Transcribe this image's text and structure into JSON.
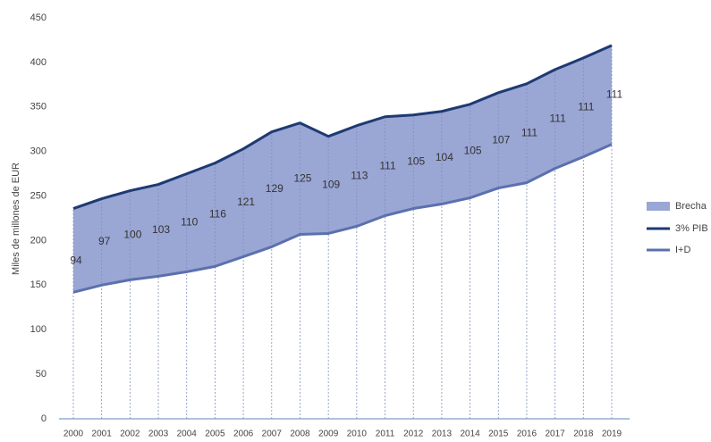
{
  "chart_data": {
    "type": "area",
    "y_label": "Miles de millones de EUR",
    "categories": [
      "2000",
      "2001",
      "2002",
      "2003",
      "2004",
      "2005",
      "2006",
      "2007",
      "2008",
      "2009",
      "2010",
      "2011",
      "2012",
      "2013",
      "2014",
      "2015",
      "2016",
      "2017",
      "2018",
      "2019"
    ],
    "series": [
      {
        "name": "Brecha",
        "color": "#9aa6d4",
        "values": [
          94,
          97,
          100,
          103,
          110,
          116,
          121,
          129,
          125,
          109,
          113,
          111,
          105,
          104,
          105,
          107,
          111,
          111,
          111,
          111
        ]
      },
      {
        "name": "3% PIB",
        "color": "#1d3a73",
        "values": [
          236,
          247,
          256,
          263,
          275,
          287,
          303,
          322,
          332,
          317,
          329,
          339,
          341,
          345,
          353,
          366,
          376,
          392,
          405,
          419
        ]
      },
      {
        "name": "I+D",
        "color": "#5b70ae",
        "values": [
          142,
          150,
          156,
          160,
          165,
          171,
          182,
          193,
          207,
          208,
          216,
          228,
          236,
          241,
          248,
          259,
          265,
          281,
          294,
          308
        ]
      }
    ],
    "ylim": [
      0,
      450
    ],
    "yticks": [
      0,
      50,
      100,
      150,
      200,
      250,
      300,
      350,
      400,
      450
    ]
  }
}
